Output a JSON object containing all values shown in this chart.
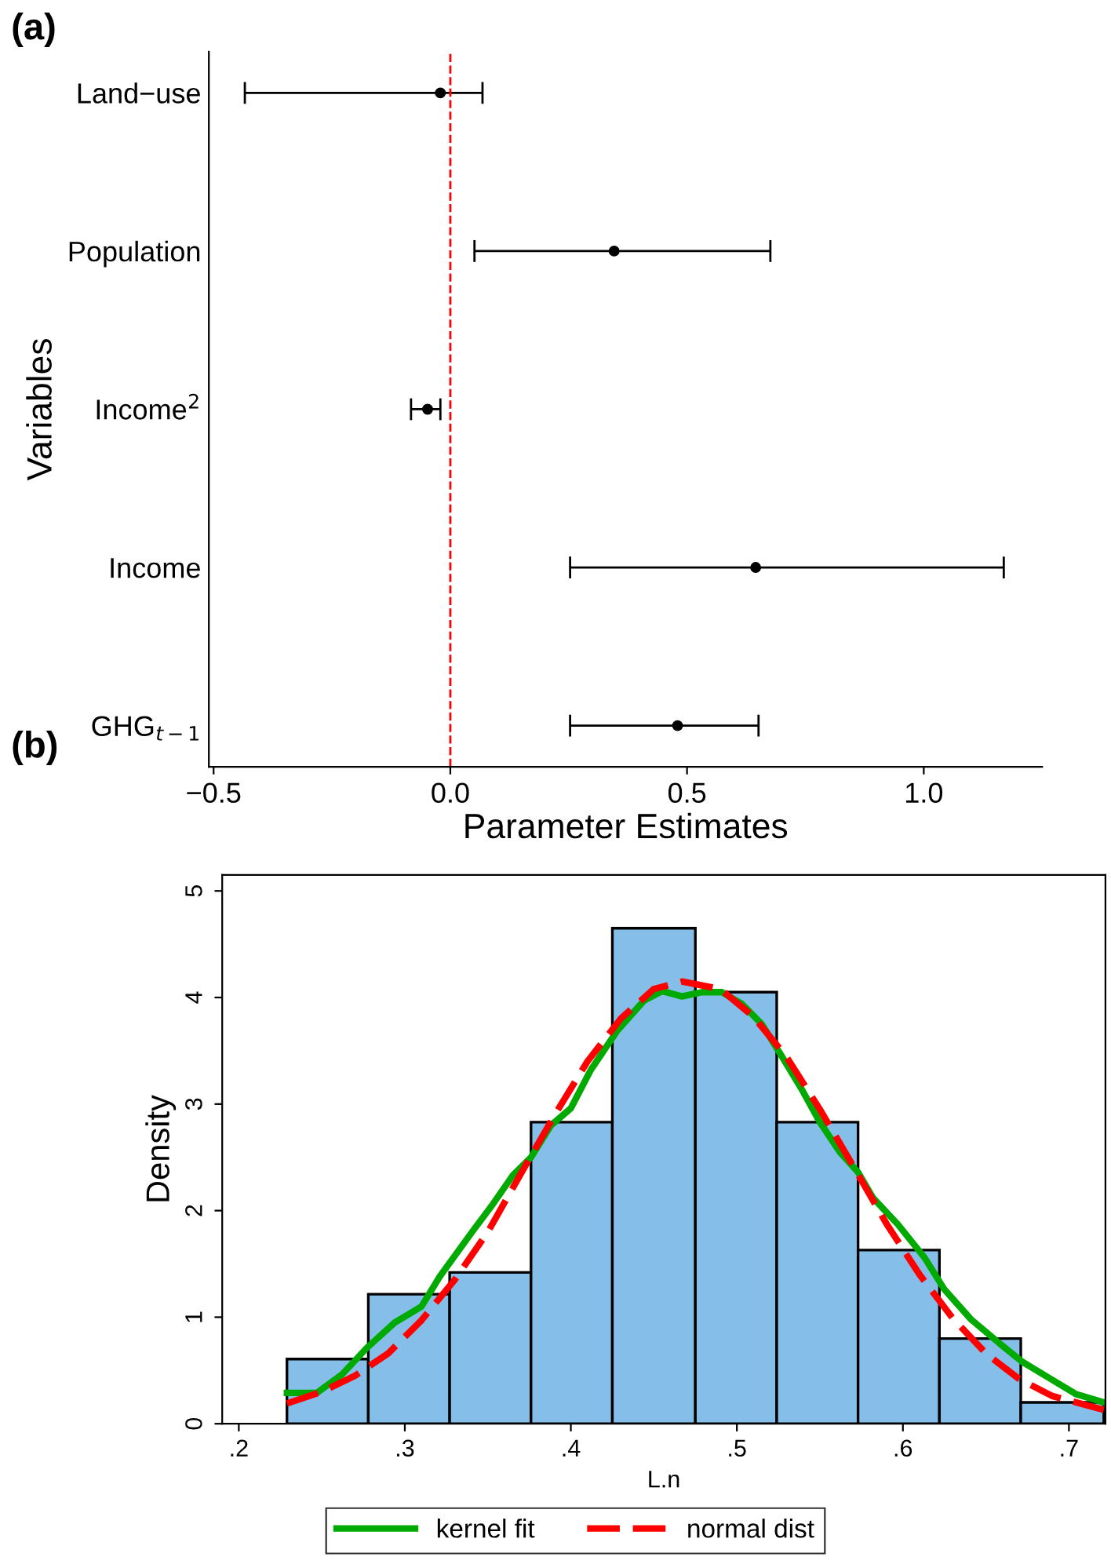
{
  "chart_data": [
    {
      "type": "scatter",
      "title": "(a)",
      "orientation": "horizontal",
      "xlabel": "Parameter Estimates",
      "ylabel": "Variables",
      "categories": [
        "Land−use",
        "Population",
        "Income$^{2}$",
        "Income",
        "GHG$_{t−1}$"
      ],
      "values": [
        -0.021,
        0.346,
        -0.048,
        0.645,
        0.48
      ],
      "errors": [
        [
          -0.434,
          0.068
        ],
        [
          0.051,
          0.676
        ],
        [
          -0.083,
          -0.021
        ],
        [
          0.253,
          1.169
        ],
        [
          0.253,
          0.651
        ]
      ],
      "color": "#000000",
      "marker": "circle",
      "xlim": [
        -0.51,
        1.25
      ],
      "xticks": [
        {
          "value": -0.5,
          "label": "−0.5"
        },
        {
          "value": 0,
          "label": "0.0"
        },
        {
          "value": 0.5,
          "label": "0.5"
        },
        {
          "value": 1.0,
          "label": "1.0"
        }
      ],
      "ref_lines": [
        {
          "axis": "x",
          "value": 0,
          "color": "#ff0000",
          "line_style": "dashed"
        }
      ],
      "grid": false
    },
    {
      "type": "histogram",
      "title": "(b)",
      "xlabel": "L.n",
      "ylabel": "Density",
      "bins": [
        0.229,
        0.278,
        0.327,
        0.376,
        0.425,
        0.475,
        0.524,
        0.573,
        0.622,
        0.671,
        0.721
      ],
      "values": [
        0.607,
        1.215,
        1.42,
        2.83,
        4.65,
        4.05,
        2.83,
        1.63,
        0.8,
        0.2
      ],
      "color": "#85bfe9",
      "series": [
        {
          "type": "line",
          "name": "kernel fit",
          "color": "#00aa00",
          "line_style": "solid",
          "x": [
            0.229,
            0.247,
            0.262,
            0.277,
            0.294,
            0.31,
            0.321,
            0.341,
            0.353,
            0.365,
            0.376,
            0.388,
            0.4,
            0.412,
            0.428,
            0.444,
            0.455,
            0.467,
            0.479,
            0.491,
            0.503,
            0.515,
            0.527,
            0.539,
            0.55,
            0.562,
            0.573,
            0.582,
            0.597,
            0.613,
            0.625,
            0.641,
            0.657,
            0.672,
            0.688,
            0.704,
            0.721
          ],
          "values": [
            0.29,
            0.29,
            0.46,
            0.71,
            0.95,
            1.1,
            1.38,
            1.81,
            2.06,
            2.33,
            2.5,
            2.8,
            2.96,
            3.32,
            3.69,
            3.97,
            4.06,
            4.01,
            4.05,
            4.05,
            3.94,
            3.75,
            3.45,
            3.14,
            2.83,
            2.55,
            2.36,
            2.12,
            1.87,
            1.56,
            1.26,
            0.98,
            0.77,
            0.58,
            0.43,
            0.28,
            0.2
          ]
        },
        {
          "type": "line",
          "name": "normal dist",
          "color": "#ff0000",
          "line_style": "dashed",
          "x": [
            0.229,
            0.25,
            0.27,
            0.29,
            0.31,
            0.33,
            0.35,
            0.37,
            0.39,
            0.41,
            0.43,
            0.45,
            0.467,
            0.49,
            0.51,
            0.53,
            0.55,
            0.57,
            0.59,
            0.61,
            0.63,
            0.65,
            0.67,
            0.69,
            0.721
          ],
          "values": [
            0.19,
            0.3,
            0.45,
            0.66,
            0.97,
            1.35,
            1.8,
            2.35,
            2.89,
            3.4,
            3.8,
            4.08,
            4.15,
            4.08,
            3.82,
            3.44,
            2.95,
            2.42,
            1.88,
            1.4,
            0.99,
            0.66,
            0.42,
            0.26,
            0.13
          ]
        }
      ],
      "xlim": [
        0.19,
        0.722
      ],
      "xticks": [
        {
          "value": 0.2,
          "label": ".2"
        },
        {
          "value": 0.3,
          "label": ".3"
        },
        {
          "value": 0.4,
          "label": ".4"
        },
        {
          "value": 0.5,
          "label": ".5"
        },
        {
          "value": 0.6,
          "label": ".6"
        },
        {
          "value": 0.7,
          "label": ".7"
        }
      ],
      "ylim": [
        0,
        5.15
      ],
      "yticks": [
        0,
        1,
        2,
        3,
        4,
        5
      ],
      "legend": "bottom",
      "grid": false
    }
  ]
}
